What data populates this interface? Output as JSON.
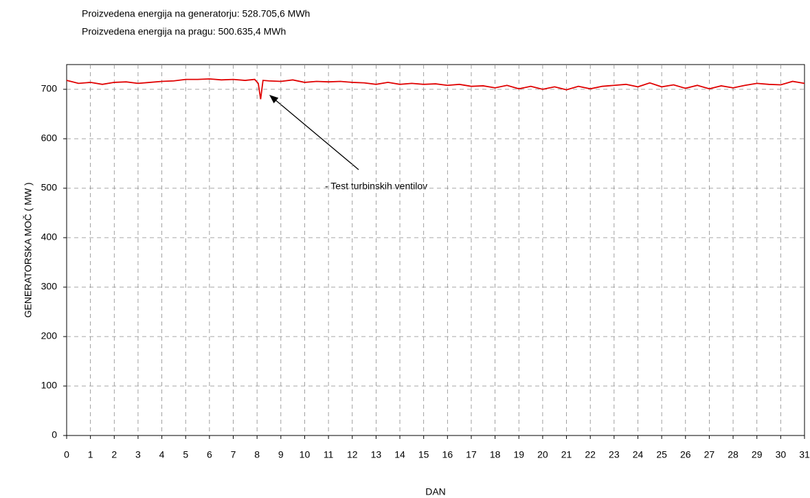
{
  "chart_data": {
    "type": "line",
    "title": "Proizvedena energija na generatorju: 528.705,6 MWh",
    "subtitle": "Proizvedena energija na pragu: 500.635,4 MWh",
    "xlabel": "DAN",
    "ylabel": "GENERATORSKA MOČ  ( MW )",
    "annotation": "- Test turbinskih ventilov",
    "x": [
      0,
      0.5,
      1,
      1.5,
      2,
      2.5,
      3,
      3.5,
      4,
      4.5,
      5,
      5.5,
      6,
      6.5,
      7,
      7.5,
      7.9,
      8.05,
      8.15,
      8.25,
      8.5,
      9,
      9.5,
      10,
      10.5,
      11,
      11.5,
      12,
      12.5,
      13,
      13.5,
      14,
      14.5,
      15,
      15.5,
      16,
      16.5,
      17,
      17.5,
      18,
      18.5,
      19,
      19.5,
      20,
      20.5,
      21,
      21.5,
      22,
      22.5,
      23,
      23.5,
      24,
      24.5,
      25,
      25.5,
      26,
      26.5,
      27,
      27.5,
      28,
      28.5,
      29,
      29.5,
      30,
      30.5,
      31
    ],
    "series": [
      {
        "name": "GENERATORSKA MOČ",
        "color": "#e00000",
        "values": [
          718,
          712,
          714,
          710,
          714,
          715,
          712,
          714,
          716,
          717,
          720,
          720,
          721,
          719,
          720,
          718,
          720,
          712,
          680,
          718,
          717,
          716,
          719,
          714,
          716,
          715,
          716,
          714,
          713,
          710,
          714,
          710,
          712,
          710,
          711,
          708,
          710,
          706,
          707,
          703,
          708,
          701,
          706,
          700,
          705,
          699,
          706,
          701,
          706,
          708,
          710,
          705,
          713,
          705,
          709,
          702,
          708,
          701,
          707,
          703,
          708,
          712,
          710,
          709,
          716,
          712
        ]
      }
    ],
    "xlim": [
      0,
      31
    ],
    "xticks": [
      0,
      1,
      2,
      3,
      4,
      5,
      6,
      7,
      8,
      9,
      10,
      11,
      12,
      13,
      14,
      15,
      16,
      17,
      18,
      19,
      20,
      21,
      22,
      23,
      24,
      25,
      26,
      27,
      28,
      29,
      30,
      31
    ],
    "ylim": [
      0,
      750
    ],
    "yticks": [
      0,
      100,
      200,
      300,
      400,
      500,
      600,
      700
    ],
    "grid": true
  }
}
